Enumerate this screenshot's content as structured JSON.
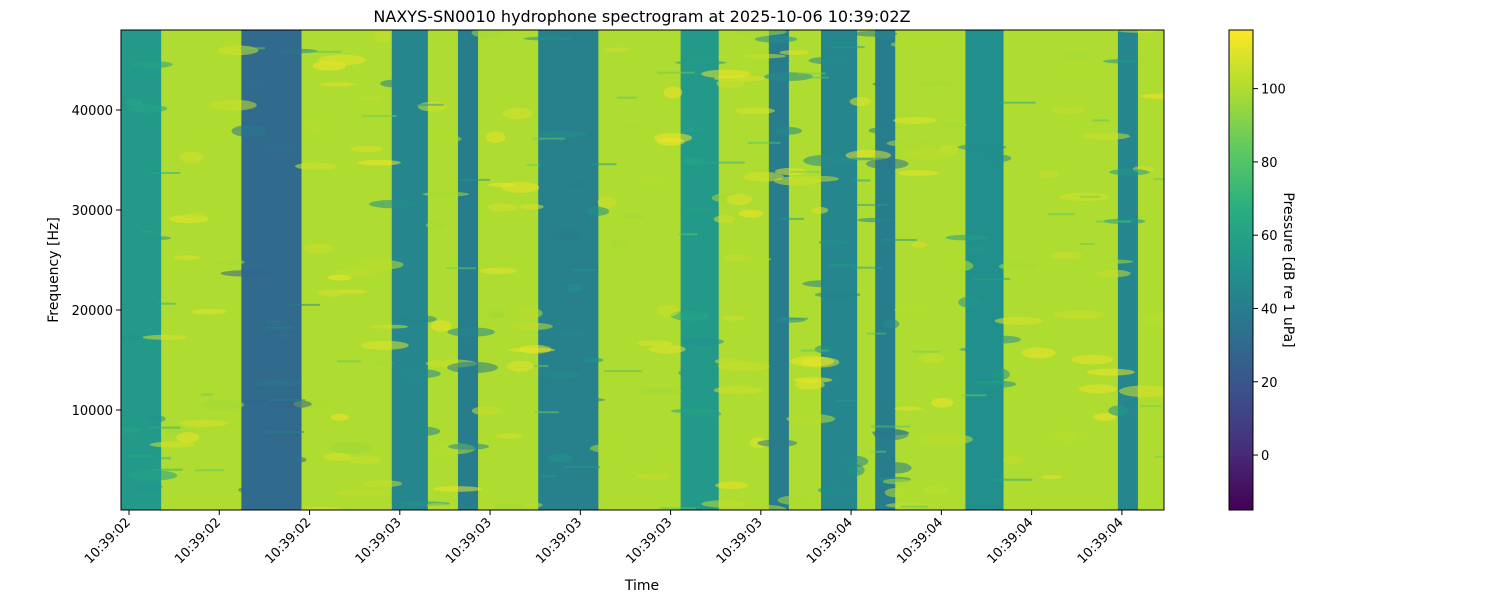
{
  "chart_data": {
    "type": "heatmap",
    "title": "NAXYS-SN0010 hydrophone spectrogram at 2025-10-06 10:39:02Z",
    "xlabel": "Time",
    "ylabel": "Frequency [Hz]",
    "colorbar_label": "Pressure [dB re 1 uPa]",
    "colormap": "viridis",
    "x_tick_labels": [
      "10:39:02",
      "10:39:02",
      "10:39:02",
      "10:39:03",
      "10:39:03",
      "10:39:03",
      "10:39:03",
      "10:39:03",
      "10:39:04",
      "10:39:04",
      "10:39:04",
      "10:39:04"
    ],
    "y_ticks": [
      10000,
      20000,
      30000,
      40000
    ],
    "y_tick_labels": [
      "10000",
      "20000",
      "30000",
      "40000"
    ],
    "ylim": [
      0,
      48000
    ],
    "colorbar_range": [
      -15,
      116
    ],
    "colorbar_ticks": [
      0,
      20,
      40,
      60,
      80,
      100
    ],
    "colorbar_tick_labels": [
      "0",
      "20",
      "40",
      "60",
      "80",
      "100"
    ],
    "time_span_s": 2.6,
    "x_ticks_s": [
      0.02,
      0.245,
      0.47,
      0.695,
      0.92,
      1.145,
      1.37,
      1.595,
      1.82,
      2.045,
      2.27,
      2.495
    ],
    "base_level_db": 100,
    "low_bands": [
      {
        "t0": 0.0,
        "t1": 0.1,
        "level_db": 55
      },
      {
        "t0": 0.3,
        "t1": 0.45,
        "level_db": 30
      },
      {
        "t0": 0.675,
        "t1": 0.765,
        "level_db": 45
      },
      {
        "t0": 0.84,
        "t1": 0.89,
        "level_db": 40
      },
      {
        "t0": 1.04,
        "t1": 1.19,
        "level_db": 42
      },
      {
        "t0": 1.395,
        "t1": 1.49,
        "level_db": 55
      },
      {
        "t0": 1.615,
        "t1": 1.665,
        "level_db": 40
      },
      {
        "t0": 1.745,
        "t1": 1.835,
        "level_db": 45
      },
      {
        "t0": 1.88,
        "t1": 1.93,
        "level_db": 40
      },
      {
        "t0": 2.105,
        "t1": 2.2,
        "level_db": 50
      },
      {
        "t0": 2.485,
        "t1": 2.535,
        "level_db": 45
      }
    ],
    "grid": false
  }
}
